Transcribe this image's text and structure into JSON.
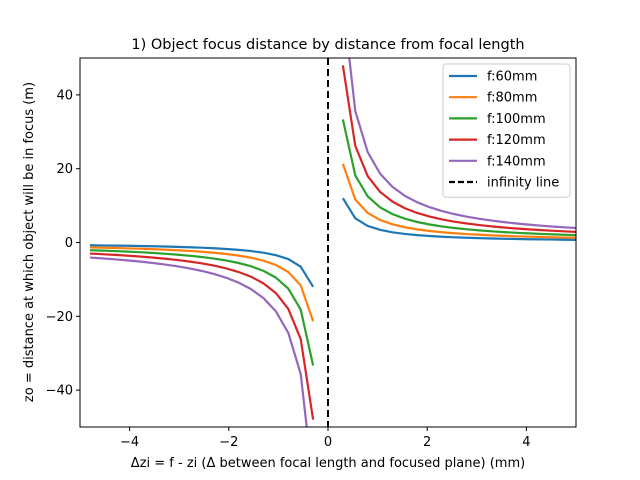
{
  "chart_data": {
    "type": "line",
    "title": "1) Object focus distance by distance from focal length",
    "xlabel": "Δzi = f - zi (Δ between focal length and focused plane) (mm)",
    "ylabel": "zo = distance at which object will be in focus (m)",
    "xlim": [
      -5,
      5
    ],
    "ylim": [
      -50,
      50
    ],
    "xticks": [
      -4,
      -2,
      0,
      2,
      4
    ],
    "xtick_labels": [
      "−4",
      "−2",
      "0",
      "2",
      "4"
    ],
    "yticks": [
      -40,
      -20,
      0,
      20,
      40
    ],
    "ytick_labels": [
      "−40",
      "−20",
      "0",
      "20",
      "40"
    ],
    "grid": false,
    "legend_position": "upper right",
    "x": [
      -4.8,
      -4.55,
      -4.3,
      -4.05,
      -3.8,
      -3.55,
      -3.3,
      -3.05,
      -2.8,
      -2.55,
      -2.3,
      -2.05,
      -1.8,
      -1.55,
      -1.3,
      -1.05,
      -0.8,
      -0.55,
      -0.3,
      0.3,
      0.55,
      0.8,
      1.05,
      1.3,
      1.55,
      1.8,
      2.05,
      2.3,
      2.55,
      2.8,
      3.05,
      3.3,
      3.55,
      3.8,
      4.05,
      4.3,
      4.55,
      4.8,
      5.05
    ],
    "series": [
      {
        "name": "f:60mm",
        "color": "#1f77b4",
        "f_mm": 60
      },
      {
        "name": "f:80mm",
        "color": "#ff7f0e",
        "f_mm": 80
      },
      {
        "name": "f:100mm",
        "color": "#2ca02c",
        "f_mm": 100
      },
      {
        "name": "f:120mm",
        "color": "#d62728",
        "f_mm": 120
      },
      {
        "name": "f:140mm",
        "color": "#9467bd",
        "f_mm": 140
      }
    ],
    "vline": {
      "name": "infinity line",
      "x": 0,
      "color": "#000000",
      "style": "dashed"
    }
  }
}
